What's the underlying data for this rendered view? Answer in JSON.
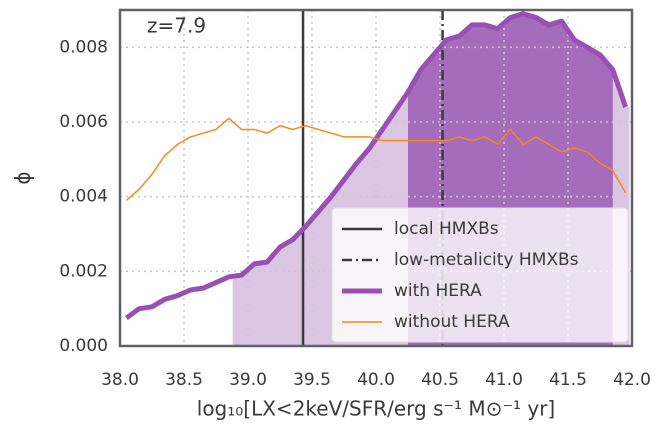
{
  "chart_data": {
    "type": "line",
    "annotation": "z=7.9",
    "xlabel": "log₁₀[LX<2keV/SFR/erg s⁻¹ M⊙⁻¹ yr]",
    "ylabel": "ϕ",
    "xlim": [
      38,
      42
    ],
    "ylim": [
      0,
      0.009
    ],
    "xticks": [
      {
        "value": 38,
        "label": "38.0"
      },
      {
        "value": 38.5,
        "label": "38.5"
      },
      {
        "value": 39,
        "label": "39.0"
      },
      {
        "value": 39.5,
        "label": "39.5"
      },
      {
        "value": 40,
        "label": "40.0"
      },
      {
        "value": 40.5,
        "label": "40.5"
      },
      {
        "value": 41,
        "label": "41.0"
      },
      {
        "value": 41.5,
        "label": "41.5"
      },
      {
        "value": 42,
        "label": "42.0"
      }
    ],
    "yticks": [
      {
        "value": 0,
        "label": "0.000"
      },
      0.002,
      0.004,
      0.006,
      0.008
    ],
    "grid": true,
    "legend": "lower right",
    "x": [
      38.05,
      38.15,
      38.25,
      38.35,
      38.45,
      38.55,
      38.65,
      38.75,
      38.85,
      38.95,
      39.05,
      39.15,
      39.25,
      39.35,
      39.45,
      39.55,
      39.65,
      39.75,
      39.85,
      39.95,
      40.05,
      40.15,
      40.25,
      40.35,
      40.45,
      40.55,
      40.65,
      40.75,
      40.85,
      40.95,
      41.05,
      41.15,
      41.25,
      41.35,
      41.45,
      41.55,
      41.65,
      41.75,
      41.85,
      41.95
    ],
    "vlines": [
      {
        "name": "local HMXBs",
        "x": 39.43,
        "style": "solid",
        "color": "#3b3b3b"
      },
      {
        "name": "low-metalicity HMXBs",
        "x": 40.52,
        "style": "dashdot",
        "color": "#3b3b3b"
      }
    ],
    "shade_regions": [
      {
        "range": [
          38.88,
          41.98
        ],
        "color": "#dac6e2"
      },
      {
        "range": [
          40.25,
          41.85
        ],
        "color": "#a46cba"
      }
    ],
    "series": [
      {
        "name": "with HERA",
        "color": "#9a4fb2",
        "width": 5,
        "values": [
          0.00075,
          0.001,
          0.00105,
          0.00125,
          0.00135,
          0.0015,
          0.00155,
          0.0017,
          0.00185,
          0.0019,
          0.0022,
          0.00225,
          0.00265,
          0.00285,
          0.0032,
          0.0036,
          0.004,
          0.00445,
          0.0049,
          0.0053,
          0.0058,
          0.0063,
          0.0068,
          0.0074,
          0.0078,
          0.0082,
          0.0083,
          0.0086,
          0.0086,
          0.0085,
          0.0088,
          0.0089,
          0.0088,
          0.0086,
          0.0087,
          0.0082,
          0.008,
          0.0078,
          0.0074,
          0.0064
        ]
      },
      {
        "name": "without HERA",
        "color": "#f28a1e",
        "width": 1.5,
        "values": [
          0.0039,
          0.0042,
          0.0046,
          0.0051,
          0.0054,
          0.0056,
          0.0057,
          0.0058,
          0.0061,
          0.0058,
          0.0058,
          0.0057,
          0.0059,
          0.0058,
          0.0059,
          0.0058,
          0.0057,
          0.0056,
          0.0056,
          0.0056,
          0.0055,
          0.0055,
          0.0055,
          0.0055,
          0.0055,
          0.0055,
          0.0056,
          0.0055,
          0.0056,
          0.0054,
          0.0058,
          0.0054,
          0.0056,
          0.0054,
          0.0052,
          0.0053,
          0.0052,
          0.0049,
          0.0047,
          0.0041
        ]
      }
    ]
  }
}
